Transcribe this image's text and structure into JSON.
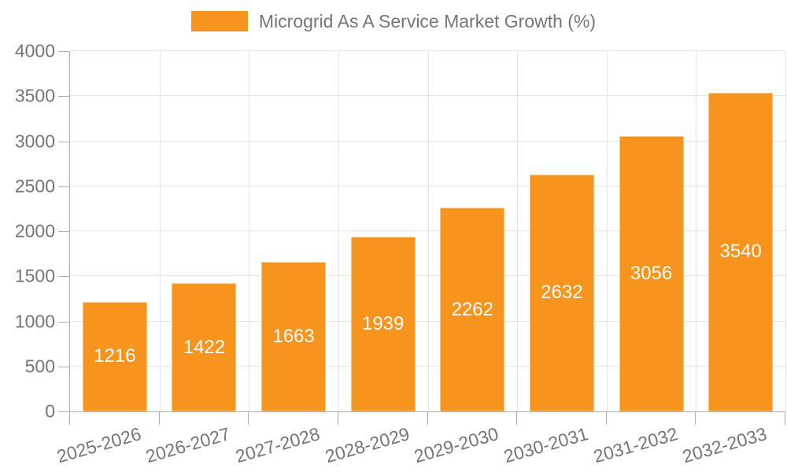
{
  "legend": {
    "label": "Microgrid As A Service Market Growth (%)"
  },
  "chart_data": {
    "type": "bar",
    "title": "Microgrid As A Service Market Growth (%)",
    "categories": [
      "2025-2026",
      "2026-2027",
      "2027-2028",
      "2028-2029",
      "2029-2030",
      "2030-2031",
      "2031-2032",
      "2032-2033"
    ],
    "values": [
      1216,
      1422,
      1663,
      1939,
      2262,
      2632,
      3056,
      3540
    ],
    "xlabel": "",
    "ylabel": "",
    "ylim": [
      0,
      4000
    ],
    "yticks": [
      0,
      500,
      1000,
      1500,
      2000,
      2500,
      3000,
      3500,
      4000
    ],
    "grid": true,
    "legend_position": "top-center",
    "colors": {
      "bar": "#F7941E",
      "value_label": "#FFFFFF",
      "axis_text": "#757575",
      "legend_text": "#757575",
      "gridline": "#E4E4E4",
      "axis_line": "#ABABAB"
    }
  }
}
